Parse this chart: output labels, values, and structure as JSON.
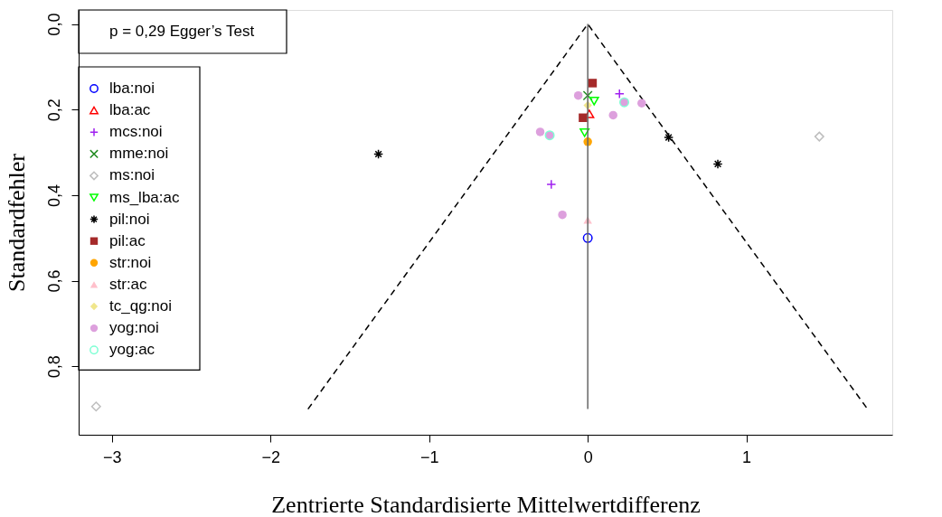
{
  "chart_data": {
    "type": "scatter",
    "xlabel": "Zentrierte Standardisierte Mittelwertdifferenz",
    "ylabel": "Standardfehler",
    "xlim": [
      -3.21,
      1.92
    ],
    "ylim": [
      0.96,
      -0.033
    ],
    "xticks": [
      {
        "value": -3,
        "label": "−3"
      },
      {
        "value": -2,
        "label": "−2"
      },
      {
        "value": -1,
        "label": "−1"
      },
      {
        "value": 0,
        "label": "0"
      },
      {
        "value": 1,
        "label": "1"
      }
    ],
    "yticks": [
      {
        "value": 0,
        "label": "0,0"
      },
      {
        "value": 0.2,
        "label": "0,2"
      },
      {
        "value": 0.4,
        "label": "0,4"
      },
      {
        "value": 0.6,
        "label": "0,6"
      },
      {
        "value": 0.8,
        "label": "0,8"
      }
    ],
    "grid": false,
    "legend": "top left",
    "annotations": [
      "p = 0,29 Egger’s Test"
    ],
    "ref_lines": [
      {
        "axis": "x",
        "value": 0,
        "color": "#666666",
        "line_style": "solid"
      }
    ],
    "series": [
      {
        "type": "line",
        "color": "#000000",
        "line_style": "dashed",
        "x": [
          -1.764,
          0,
          1.764
        ],
        "values": [
          0.9,
          0,
          0.9
        ]
      },
      {
        "name": "lba:noi",
        "color": "#0000ff",
        "marker": "circle-open",
        "x": [
          0
        ],
        "values": [
          0.5
        ]
      },
      {
        "name": "lba:ac",
        "color": "#ff0000",
        "marker": "triangle-open",
        "x": [
          0.01
        ],
        "values": [
          0.21
        ]
      },
      {
        "name": "mcs:noi",
        "color": "#a020f0",
        "marker": "plus",
        "x": [
          0.2,
          -0.23
        ],
        "values": [
          0.163,
          0.375
        ]
      },
      {
        "name": "mme:noi",
        "color": "#228b22",
        "marker": "x",
        "x": [
          0
        ],
        "values": [
          0.167
        ]
      },
      {
        "name": "ms:noi",
        "color": "#bebebe",
        "marker": "diamond-open",
        "x": [
          1.46,
          -3.1
        ],
        "values": [
          0.263,
          0.894
        ]
      },
      {
        "name": "ms_lba:ac",
        "color": "#00ff00",
        "marker": "triangle-down-open",
        "x": [
          0.04,
          -0.02
        ],
        "values": [
          0.18,
          0.254
        ]
      },
      {
        "name": "pil:noi",
        "color": "#000000",
        "marker": "cross",
        "x": [
          -1.32,
          0.51,
          0.82
        ],
        "values": [
          0.304,
          0.265,
          0.327
        ]
      },
      {
        "name": "pil:ac",
        "color": "#a52a2a",
        "marker": "square",
        "x": [
          0.03,
          -0.03
        ],
        "values": [
          0.138,
          0.219
        ]
      },
      {
        "name": "str:noi",
        "color": "#ffa500",
        "marker": "circle",
        "x": [
          0
        ],
        "values": [
          0.275
        ]
      },
      {
        "name": "str:ac",
        "color": "#ffc0cb",
        "marker": "triangle",
        "x": [
          0
        ],
        "values": [
          0.458
        ]
      },
      {
        "name": "tc_qg:noi",
        "color": "#f0e68c",
        "marker": "diamond",
        "x": [
          0
        ],
        "values": [
          0.19
        ]
      },
      {
        "name": "yog:noi",
        "color": "#dda0dd",
        "marker": "circle",
        "x": [
          -0.06,
          -0.3,
          0.16,
          0.34,
          -0.16,
          -0.24,
          0.23
        ],
        "values": [
          0.167,
          0.252,
          0.213,
          0.185,
          0.446,
          0.26,
          0.183
        ]
      },
      {
        "name": "yog:ac",
        "color": "#7fffd4",
        "marker": "circle-open",
        "x": [
          -0.24,
          0.23
        ],
        "values": [
          0.26,
          0.183
        ]
      }
    ]
  }
}
